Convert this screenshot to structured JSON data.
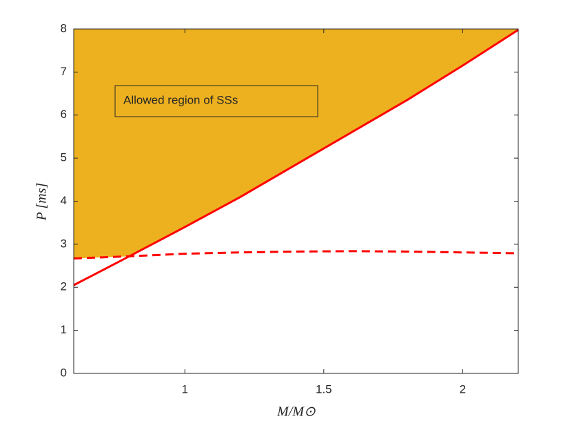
{
  "chart_data": {
    "type": "line",
    "xlabel": "M/M⊙",
    "ylabel": "P [ms]",
    "annotation": "Allowed region of SSs",
    "fill_color": "#EDB120",
    "xlim": [
      0.6,
      2.2
    ],
    "xticks": [
      1,
      1.5,
      2
    ],
    "ylim": [
      0,
      8
    ],
    "yticks": [
      0,
      1,
      2,
      3,
      4,
      5,
      6,
      7,
      8
    ],
    "x": [
      0.6,
      0.8,
      1.0,
      1.2,
      1.4,
      1.6,
      1.8,
      2.0,
      2.2
    ],
    "series": [
      {
        "color": "#FF0000",
        "dash": false,
        "values": [
          2.05,
          2.72,
          3.4,
          4.1,
          4.85,
          5.6,
          6.35,
          7.15,
          7.98
        ]
      },
      {
        "color": "#FF0000",
        "dash": true,
        "values": [
          2.67,
          2.72,
          2.78,
          2.81,
          2.83,
          2.84,
          2.83,
          2.81,
          2.79
        ]
      }
    ]
  }
}
